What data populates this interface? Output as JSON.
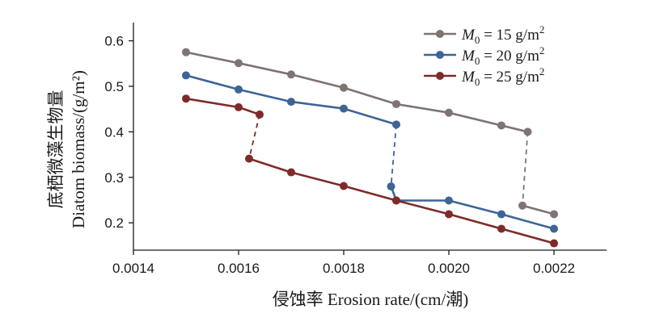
{
  "chart_data": {
    "type": "line",
    "xlabel": "侵蚀率 Erosion rate/(cm/潮)",
    "ylabel_line1": "底栖微藻生物量",
    "ylabel_line2": "Diatom biomass/(g/m²)",
    "xlim": [
      0.0014,
      0.0023
    ],
    "ylim": [
      0.14,
      0.64
    ],
    "xticks": [
      0.0014,
      0.0016,
      0.0018,
      0.002,
      0.0022
    ],
    "xtick_labels": [
      "0.0014",
      "0.0016",
      "0.0018",
      "0.0020",
      "0.0022"
    ],
    "yticks": [
      0.2,
      0.3,
      0.4,
      0.5,
      0.6
    ],
    "ytick_labels": [
      "0.2",
      "0.3",
      "0.4",
      "0.5",
      "0.6"
    ],
    "grid": false,
    "legend_position": "top-right",
    "series": [
      {
        "name": "M0 = 15 g/m2",
        "legend_symbol": "M",
        "legend_sub": "0",
        "legend_rest": " = 15 g/m",
        "legend_sup": "2",
        "color": "#7f7373",
        "segments": [
          {
            "x": [
              0.0015,
              0.0016,
              0.0017,
              0.0018,
              0.0019,
              0.002,
              0.0021,
              0.00215
            ],
            "y": [
              0.575,
              0.551,
              0.526,
              0.497,
              0.461,
              0.442,
              0.414,
              0.4
            ]
          },
          {
            "x": [
              0.00214,
              0.0022
            ],
            "y": [
              0.238,
              0.219
            ]
          }
        ],
        "jump": {
          "from": [
            0.00215,
            0.4
          ],
          "to": [
            0.00214,
            0.238
          ]
        }
      },
      {
        "name": "M0 = 20 g/m2",
        "legend_symbol": "M",
        "legend_sub": "0",
        "legend_rest": " = 20 g/m",
        "legend_sup": "2",
        "color": "#3d6596",
        "segments": [
          {
            "x": [
              0.0015,
              0.0016,
              0.0017,
              0.0018,
              0.0019
            ],
            "y": [
              0.524,
              0.493,
              0.466,
              0.451,
              0.416
            ]
          },
          {
            "x": [
              0.00189,
              0.0019,
              0.002,
              0.0021,
              0.0022
            ],
            "y": [
              0.28,
              0.249,
              0.249,
              0.219,
              0.187
            ]
          }
        ],
        "jump": {
          "from": [
            0.0019,
            0.416
          ],
          "to": [
            0.00189,
            0.28
          ]
        }
      },
      {
        "name": "M0 = 25 g/m2",
        "legend_symbol": "M",
        "legend_sub": "0",
        "legend_rest": " = 25 g/m",
        "legend_sup": "2",
        "color": "#7f2a2a",
        "segments": [
          {
            "x": [
              0.0015,
              0.0016,
              0.00164
            ],
            "y": [
              0.473,
              0.454,
              0.438
            ]
          },
          {
            "x": [
              0.00162,
              0.0017,
              0.0018,
              0.0019,
              0.002,
              0.0021,
              0.0022
            ],
            "y": [
              0.341,
              0.311,
              0.281,
              0.249,
              0.219,
              0.187,
              0.155
            ]
          }
        ],
        "jump": {
          "from": [
            0.00164,
            0.438
          ],
          "to": [
            0.00162,
            0.341
          ]
        }
      }
    ]
  }
}
